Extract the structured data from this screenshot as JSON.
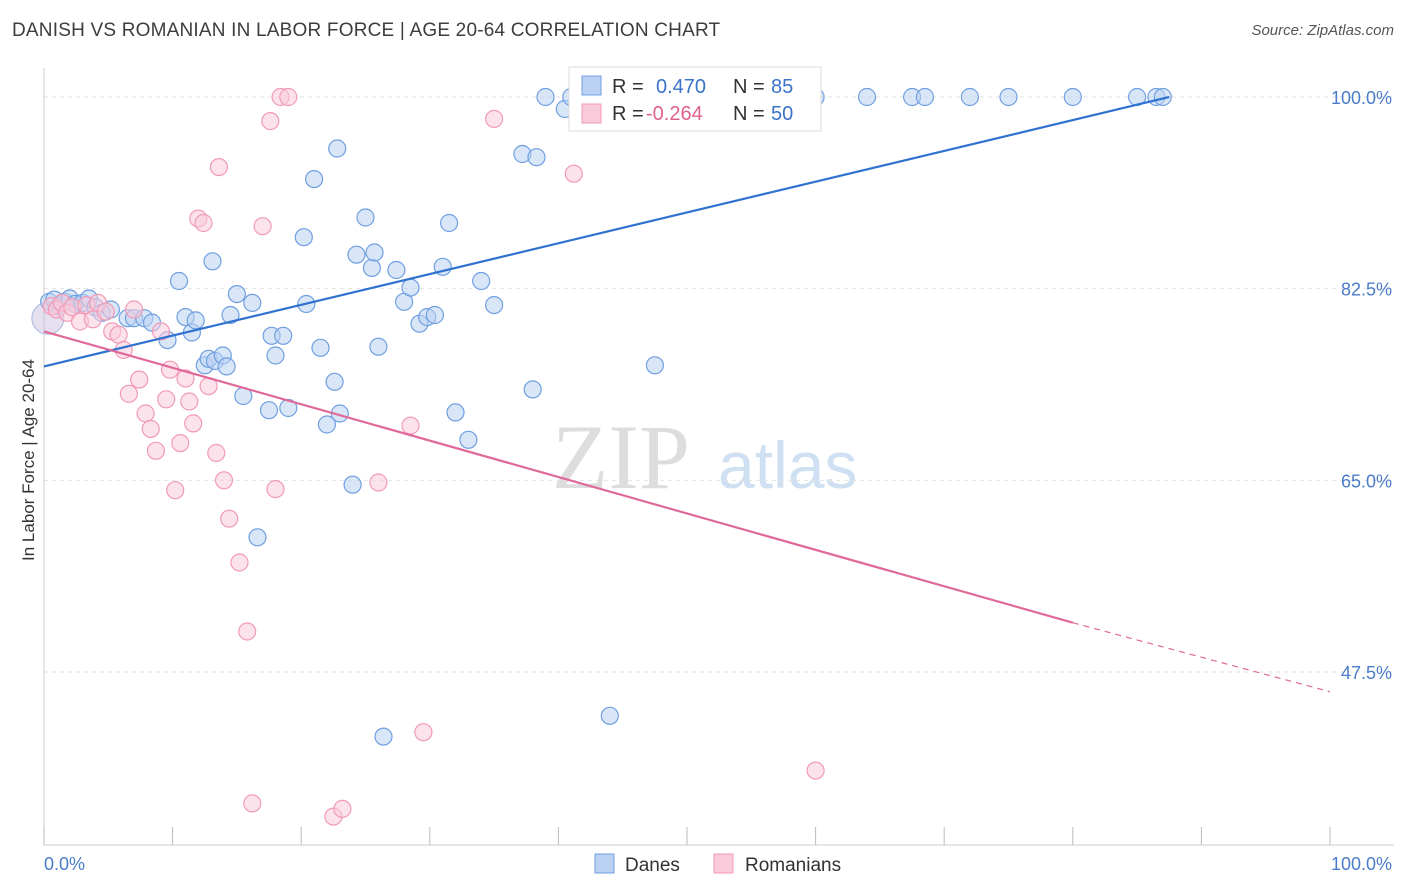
{
  "title": "DANISH VS ROMANIAN IN LABOR FORCE | AGE 20-64 CORRELATION CHART",
  "source": "Source: ZipAtlas.com",
  "watermark": {
    "zip": "ZIP",
    "atlas": "atlas"
  },
  "colors": {
    "danes": "#6f9fe0",
    "danes_line": "#2f72d0",
    "romanians": "#f19ab7",
    "romanians_line": "#e0699a",
    "tick": "#4a7cc9"
  },
  "legend": {
    "r_label": "R =",
    "n_label": "N =",
    "danes": {
      "r": "0.470",
      "n": "85"
    },
    "romanians": {
      "r": "-0.264",
      "n": "50"
    }
  },
  "chart_data": {
    "type": "scatter",
    "ylabel": "In Labor Force | Age 20-64",
    "xlim": [
      0,
      100
    ],
    "ylim": [
      28,
      100
    ],
    "x_tick_labels": [
      "0.0%",
      "100.0%"
    ],
    "y_ticks": [
      {
        "value": 47.5,
        "label": "47.5%"
      },
      {
        "value": 65.0,
        "label": "65.0%"
      },
      {
        "value": 82.5,
        "label": "82.5%"
      },
      {
        "value": 100.0,
        "label": "100.0%"
      }
    ],
    "series": [
      {
        "name": "Danes",
        "trend": {
          "x1": 0,
          "y1": 75.4,
          "x2": 87.5,
          "y2": 100.0,
          "dashed_to": null
        },
        "points": [
          [
            0.4,
            81.3
          ],
          [
            0.8,
            81.5
          ],
          [
            1.2,
            80.9
          ],
          [
            1.6,
            81.3
          ],
          [
            2.0,
            81.6
          ],
          [
            2.4,
            81.1
          ],
          [
            3.0,
            81.2
          ],
          [
            3.5,
            81.6
          ],
          [
            4.0,
            80.8
          ],
          [
            4.5,
            80.3
          ],
          [
            5.2,
            80.6
          ],
          [
            6.5,
            79.8
          ],
          [
            7.0,
            79.8
          ],
          [
            7.8,
            79.8
          ],
          [
            8.4,
            79.4
          ],
          [
            9.6,
            77.8
          ],
          [
            10.5,
            83.2
          ],
          [
            11.0,
            79.9
          ],
          [
            11.5,
            78.5
          ],
          [
            11.8,
            79.6
          ],
          [
            12.5,
            75.5
          ],
          [
            12.8,
            76.1
          ],
          [
            13.1,
            85.0
          ],
          [
            13.3,
            75.9
          ],
          [
            13.9,
            76.4
          ],
          [
            14.2,
            75.4
          ],
          [
            14.5,
            80.1
          ],
          [
            15.0,
            82.0
          ],
          [
            15.5,
            72.7
          ],
          [
            16.2,
            81.2
          ],
          [
            16.6,
            59.8
          ],
          [
            17.5,
            71.4
          ],
          [
            17.7,
            78.2
          ],
          [
            18.0,
            76.4
          ],
          [
            18.6,
            78.2
          ],
          [
            19.0,
            71.6
          ],
          [
            20.2,
            87.2
          ],
          [
            20.4,
            81.1
          ],
          [
            21.0,
            92.5
          ],
          [
            21.5,
            77.1
          ],
          [
            22.0,
            70.1
          ],
          [
            22.6,
            74.0
          ],
          [
            22.8,
            95.3
          ],
          [
            23.0,
            71.1
          ],
          [
            24.0,
            64.6
          ],
          [
            24.3,
            85.6
          ],
          [
            25.0,
            89.0
          ],
          [
            25.5,
            84.4
          ],
          [
            25.7,
            85.8
          ],
          [
            26.0,
            77.2
          ],
          [
            26.4,
            41.6
          ],
          [
            27.4,
            84.2
          ],
          [
            28.0,
            81.3
          ],
          [
            28.5,
            82.6
          ],
          [
            29.2,
            79.3
          ],
          [
            29.8,
            79.9
          ],
          [
            30.4,
            80.1
          ],
          [
            31.0,
            84.5
          ],
          [
            31.5,
            88.5
          ],
          [
            32.0,
            71.2
          ],
          [
            33.0,
            68.7
          ],
          [
            34.0,
            83.2
          ],
          [
            35.0,
            81.0
          ],
          [
            37.2,
            94.8
          ],
          [
            38.0,
            73.3
          ],
          [
            38.3,
            94.5
          ],
          [
            39.0,
            100.0
          ],
          [
            40.5,
            98.9
          ],
          [
            41.0,
            100.0
          ],
          [
            42.0,
            100.0
          ],
          [
            44.0,
            43.5
          ],
          [
            47.5,
            75.5
          ],
          [
            53.5,
            100.0
          ],
          [
            54.0,
            100.0
          ],
          [
            58.0,
            100.0
          ],
          [
            60.0,
            100.0
          ],
          [
            64.0,
            100.0
          ],
          [
            67.5,
            100.0
          ],
          [
            68.5,
            100.0
          ],
          [
            72.0,
            100.0
          ],
          [
            75.0,
            100.0
          ],
          [
            80.0,
            100.0
          ],
          [
            85.0,
            100.0
          ],
          [
            86.5,
            100.0
          ],
          [
            87.0,
            100.0
          ]
        ]
      },
      {
        "name": "Romanians",
        "trend": {
          "x1": 0,
          "y1": 78.6,
          "x2": 80.0,
          "y2": 52.0,
          "dashed_to": {
            "x": 100,
            "y": 45.7
          }
        },
        "points": [
          [
            0.6,
            80.9
          ],
          [
            1.0,
            80.6
          ],
          [
            1.4,
            81.2
          ],
          [
            1.8,
            80.3
          ],
          [
            2.2,
            80.8
          ],
          [
            2.8,
            79.5
          ],
          [
            3.3,
            81.0
          ],
          [
            3.8,
            79.7
          ],
          [
            4.2,
            81.2
          ],
          [
            4.8,
            80.4
          ],
          [
            5.3,
            78.6
          ],
          [
            5.8,
            78.3
          ],
          [
            6.2,
            76.9
          ],
          [
            6.6,
            72.9
          ],
          [
            7.0,
            80.6
          ],
          [
            7.4,
            74.2
          ],
          [
            7.9,
            71.1
          ],
          [
            8.3,
            69.7
          ],
          [
            8.7,
            67.7
          ],
          [
            9.1,
            78.6
          ],
          [
            9.5,
            72.4
          ],
          [
            9.8,
            75.1
          ],
          [
            10.2,
            64.1
          ],
          [
            10.6,
            68.4
          ],
          [
            11.0,
            74.3
          ],
          [
            11.3,
            72.2
          ],
          [
            11.6,
            70.2
          ],
          [
            12.0,
            88.9
          ],
          [
            12.4,
            88.5
          ],
          [
            12.8,
            73.6
          ],
          [
            13.4,
            67.5
          ],
          [
            13.6,
            93.6
          ],
          [
            14.0,
            65.0
          ],
          [
            14.4,
            61.5
          ],
          [
            15.2,
            57.5
          ],
          [
            15.8,
            51.2
          ],
          [
            16.2,
            35.5
          ],
          [
            17.0,
            88.2
          ],
          [
            17.6,
            97.8
          ],
          [
            18.0,
            64.2
          ],
          [
            18.4,
            100.0
          ],
          [
            19.0,
            100.0
          ],
          [
            22.5,
            34.3
          ],
          [
            23.2,
            35.0
          ],
          [
            26.0,
            64.8
          ],
          [
            28.5,
            70.0
          ],
          [
            29.5,
            42.0
          ],
          [
            35.0,
            98.0
          ],
          [
            41.2,
            93.0
          ],
          [
            60.0,
            38.5
          ]
        ]
      }
    ]
  },
  "bottom_legend": [
    "Danes",
    "Romanians"
  ]
}
